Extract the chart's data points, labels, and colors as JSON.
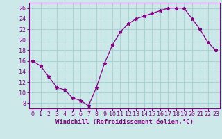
{
  "x": [
    0,
    1,
    2,
    3,
    4,
    5,
    6,
    7,
    8,
    9,
    10,
    11,
    12,
    13,
    14,
    15,
    16,
    17,
    18,
    19,
    20,
    21,
    22,
    23
  ],
  "y": [
    16,
    15,
    13,
    11,
    10.5,
    9,
    8.5,
    7.5,
    11,
    15.5,
    19,
    21.5,
    23,
    24,
    24.5,
    25,
    25.5,
    26,
    26,
    26,
    24,
    22,
    19.5,
    18
  ],
  "line_color": "#880088",
  "marker": "*",
  "bg_color": "#cce8e8",
  "grid_color": "#aad4d4",
  "xlabel": "Windchill (Refroidissement éolien,°C)",
  "xlim": [
    -0.5,
    23.5
  ],
  "ylim": [
    7,
    27
  ],
  "yticks": [
    8,
    10,
    12,
    14,
    16,
    18,
    20,
    22,
    24,
    26
  ],
  "xticks": [
    0,
    1,
    2,
    3,
    4,
    5,
    6,
    7,
    8,
    9,
    10,
    11,
    12,
    13,
    14,
    15,
    16,
    17,
    18,
    19,
    20,
    21,
    22,
    23
  ],
  "tick_color": "#880088",
  "label_color": "#880088",
  "label_fontsize": 6.5,
  "tick_fontsize": 6.0
}
